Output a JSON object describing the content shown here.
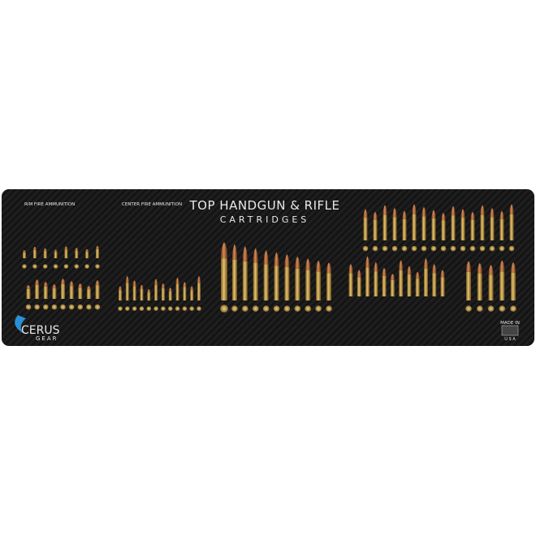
{
  "title": {
    "line1": "TOP HANDGUN & RIFLE",
    "line2": "CARTRIDGES"
  },
  "sections": {
    "rimfire": "RIM FIRE AMMUNITION",
    "centerfire": "CENTER FIRE AMMUNITION"
  },
  "brand": {
    "name": "CERUS",
    "sub": "GEAR"
  },
  "origin": {
    "made": "MADE IN",
    "country": "U S A"
  }
}
